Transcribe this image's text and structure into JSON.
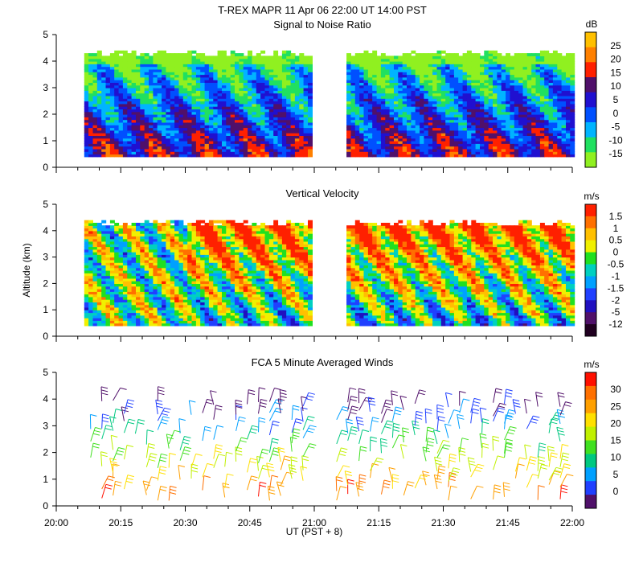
{
  "header": {
    "title": "T-REX   MAPR 11 Apr 06   22:00 UT   14:00   PST"
  },
  "chart_data": [
    {
      "type": "heatmap",
      "title": "Signal to Noise Ratio",
      "ylabel": "",
      "ylim": [
        0,
        5
      ],
      "yticks": [
        "0",
        "1",
        "2",
        "3",
        "4",
        "5"
      ],
      "xlim": [
        "20:00",
        "22:00"
      ],
      "data_gap": [
        "20:59",
        "21:07"
      ],
      "range_km": [
        0.4,
        4.4
      ],
      "colorbar": {
        "unit": "dB",
        "labels": [
          "25",
          "20",
          "15",
          "10",
          "5",
          "0",
          "-5",
          "-10",
          "-15"
        ],
        "colors": [
          "#ffc000",
          "#ff8000",
          "#ff2000",
          "#50106a",
          "#2010d0",
          "#0050ff",
          "#00b4ff",
          "#20e060",
          "#90f020"
        ]
      }
    },
    {
      "type": "heatmap",
      "title": "Vertical Velocity",
      "ylabel": "Altitude (km)",
      "ylim": [
        0,
        5
      ],
      "yticks": [
        "0",
        "1",
        "2",
        "3",
        "4",
        "5"
      ],
      "xlim": [
        "20:00",
        "22:00"
      ],
      "data_gap": [
        "20:59",
        "21:07"
      ],
      "range_km": [
        0.4,
        4.4
      ],
      "colorbar": {
        "unit": "m/s",
        "labels": [
          "1.5",
          "1",
          "0.5",
          "0",
          "-0.5",
          "-1",
          "-1.5",
          "-2",
          "-5",
          "-12"
        ],
        "colors": [
          "#ff2000",
          "#ff7000",
          "#ffc000",
          "#f0f000",
          "#20e020",
          "#00d0c0",
          "#00a0ff",
          "#2040ff",
          "#2010c0",
          "#50106a",
          "#200020"
        ]
      }
    },
    {
      "type": "scatter",
      "title": "FCA 5 Minute Averaged Winds",
      "ylabel": "",
      "ylim": [
        0,
        5
      ],
      "yticks": [
        "0",
        "1",
        "2",
        "3",
        "4",
        "5"
      ],
      "xlabel": "UT  (PST + 8)",
      "xticks": [
        "20:00",
        "20:15",
        "20:30",
        "20:45",
        "21:00",
        "21:15",
        "21:30",
        "21:45",
        "22:00"
      ],
      "colorbar": {
        "unit": "m/s",
        "labels": [
          "30",
          "25",
          "20",
          "15",
          "10",
          "5",
          "0"
        ],
        "colors": [
          "#ff1000",
          "#ff7000",
          "#ffa000",
          "#ffe000",
          "#c0f000",
          "#40e020",
          "#00c880",
          "#00a0ff",
          "#2040ff",
          "#50106a"
        ]
      }
    }
  ]
}
